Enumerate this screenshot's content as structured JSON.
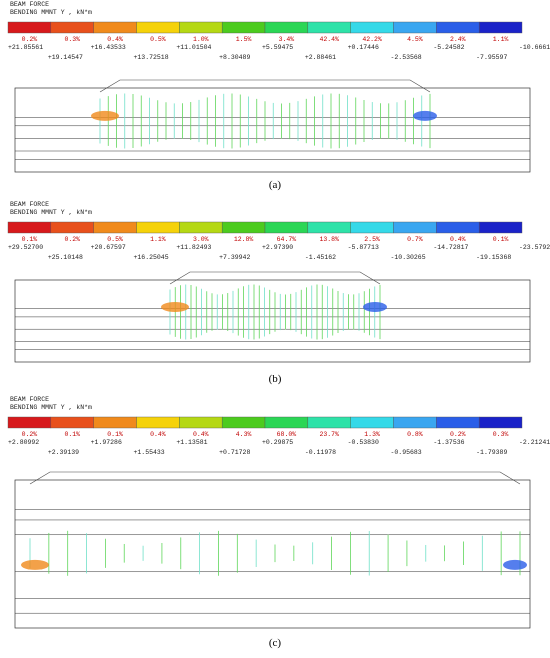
{
  "panels": [
    {
      "header": [
        "BEAM FORCE",
        "BENDING MMNT Y , kN*m"
      ],
      "percentages": [
        "0.2%",
        "0.3%",
        "0.4%",
        "0.5%",
        "1.0%",
        "1.5%",
        "3.4%",
        "42.4%",
        "42.2%",
        "4.5%",
        "2.4%",
        "1.1%"
      ],
      "values": [
        "+21.85561",
        "+19.14547",
        "+16.43533",
        "+13.72518",
        "+11.01504",
        "+8.30489",
        "+5.59475",
        "+2.88461",
        "+0.17446",
        "-2.53568",
        "-5.24582",
        "-7.95597",
        "-10.66611"
      ],
      "caption": "(a)"
    },
    {
      "header": [
        "BEAM FORCE",
        "BENDING MMNT Y , kN*m"
      ],
      "percentages": [
        "0.1%",
        "0.2%",
        "0.5%",
        "1.1%",
        "3.0%",
        "12.8%",
        "64.7%",
        "13.8%",
        "2.5%",
        "0.7%",
        "0.4%",
        "0.1%"
      ],
      "values": [
        "+29.52700",
        "+25.10148",
        "+20.67597",
        "+16.25045",
        "+11.82493",
        "+7.39942",
        "+2.97390",
        "-1.45162",
        "-5.87713",
        "-10.30265",
        "-14.72817",
        "-19.15368",
        "-23.57920"
      ],
      "caption": "(b)"
    },
    {
      "header": [
        "BEAM FORCE",
        "BENDING MMNT Y , kN*m"
      ],
      "percentages": [
        "0.2%",
        "0.1%",
        "0.1%",
        "0.4%",
        "0.4%",
        "4.3%",
        "68.0%",
        "23.7%",
        "1.3%",
        "0.8%",
        "0.2%",
        "0.3%"
      ],
      "values": [
        "+2.80992",
        "+2.39139",
        "+1.97286",
        "+1.55433",
        "+1.13581",
        "+0.71728",
        "+0.29875",
        "-0.11978",
        "-0.53830",
        "-0.95683",
        "-1.37536",
        "-1.79389",
        "-2.21241"
      ],
      "caption": "(c)"
    }
  ]
}
